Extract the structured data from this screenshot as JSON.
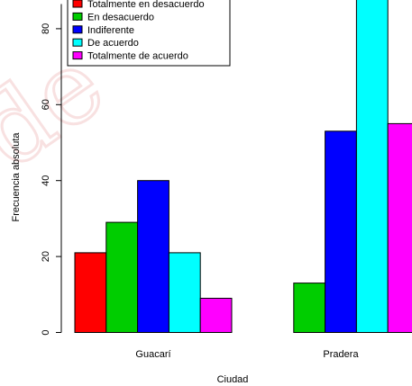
{
  "chart_data": {
    "type": "bar",
    "title": "",
    "xlabel": "Ciudad",
    "ylabel": "Frecuencia absoluta",
    "categories": [
      "Guacarí",
      "Pradera"
    ],
    "series": [
      {
        "name": "Totalmente en desacuerdo",
        "color": "#ff0000",
        "values": [
          21,
          0
        ]
      },
      {
        "name": "En desacuerdo",
        "color": "#00cd00",
        "values": [
          29,
          13
        ]
      },
      {
        "name": "Indiferente",
        "color": "#0000ff",
        "values": [
          40,
          53
        ]
      },
      {
        "name": "De acuerdo",
        "color": "#00ffff",
        "values": [
          21,
          88
        ]
      },
      {
        "name": "Totalmente de acuerdo",
        "color": "#ff00ff",
        "values": [
          9,
          55
        ]
      }
    ],
    "yticks": [
      0,
      20,
      40,
      60,
      80
    ],
    "ylim": [
      0,
      86.5
    ],
    "legend_position": "top-left",
    "grid": false
  }
}
